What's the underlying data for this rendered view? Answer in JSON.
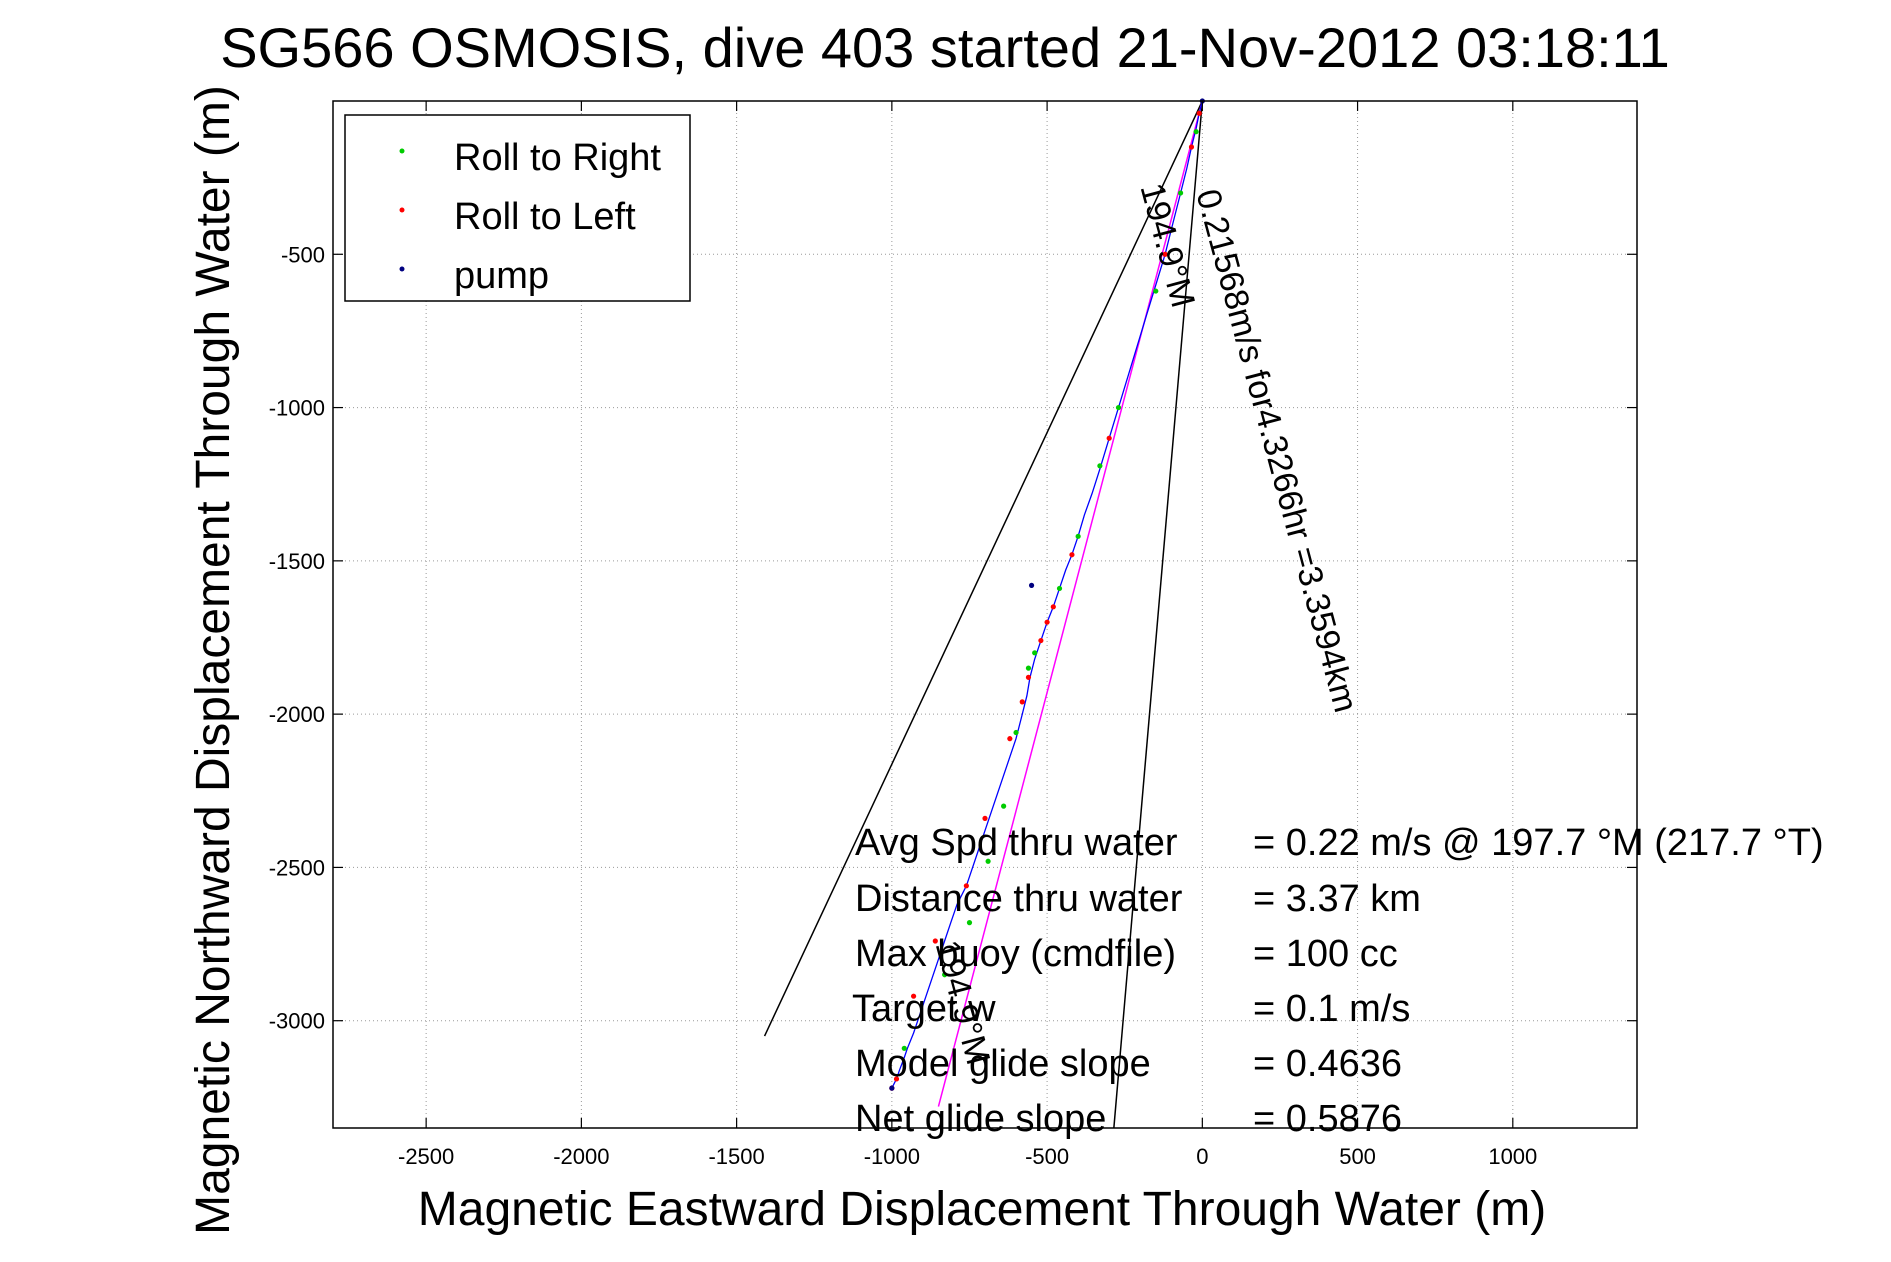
{
  "chart_data": {
    "type": "line",
    "title": "SG566 OSMOSIS, dive 403 started 21-Nov-2012 03:18:11",
    "xlabel": "Magnetic Eastward Displacement Through Water (m)",
    "ylabel": "Magnetic Northward Displacement Through Water (m)",
    "xlim": [
      -2800,
      1400
    ],
    "ylim": [
      -3350,
      0
    ],
    "xticks": [
      -2500,
      -2000,
      -1500,
      -1000,
      -500,
      0,
      500,
      1000
    ],
    "yticks": [
      -500,
      -1000,
      -1500,
      -2000,
      -2500,
      -3000
    ],
    "grid": true,
    "legend_position": "top-left",
    "legend": [
      {
        "label": "Roll to Right",
        "color": "#00cc00"
      },
      {
        "label": "Roll to Left",
        "color": "#ff0000"
      },
      {
        "label": "pump",
        "color": "#000080"
      }
    ],
    "track": {
      "color": "#0000ff",
      "x": [
        0,
        -10,
        -20,
        -35,
        -50,
        -70,
        -95,
        -120,
        -150,
        -180,
        -210,
        -240,
        -270,
        -300,
        -330,
        -355,
        -380,
        -400,
        -420,
        -440,
        -460,
        -480,
        -500,
        -520,
        -540,
        -555,
        -565,
        -580,
        -600,
        -620,
        -640,
        -660,
        -680,
        -700,
        -720,
        -740,
        -760,
        -790,
        -810,
        -830,
        -850,
        -870,
        -890,
        -910,
        -930,
        -950,
        -960,
        -975,
        -985,
        -1000
      ],
      "y": [
        0,
        -40,
        -90,
        -150,
        -220,
        -300,
        -400,
        -500,
        -600,
        -700,
        -800,
        -900,
        -1000,
        -1100,
        -1200,
        -1280,
        -1350,
        -1420,
        -1480,
        -1530,
        -1590,
        -1650,
        -1700,
        -1760,
        -1820,
        -1880,
        -1940,
        -2000,
        -2080,
        -2140,
        -2200,
        -2260,
        -2320,
        -2380,
        -2440,
        -2500,
        -2560,
        -2620,
        -2680,
        -2740,
        -2800,
        -2860,
        -2920,
        -2980,
        -3040,
        -3090,
        -3120,
        -3160,
        -3190,
        -3220
      ]
    },
    "roll_right_points": {
      "x": [
        -20,
        -70,
        -150,
        -270,
        -330,
        -400,
        -460,
        -540,
        -560,
        -600,
        -640,
        -690,
        -750,
        -830,
        -960
      ],
      "y": [
        -100,
        -300,
        -620,
        -1000,
        -1190,
        -1420,
        -1590,
        -1800,
        -1850,
        -2060,
        -2300,
        -2480,
        -2680,
        -2850,
        -3090
      ]
    },
    "roll_left_points": {
      "x": [
        -10,
        -35,
        -120,
        -300,
        -420,
        -480,
        -500,
        -520,
        -560,
        -580,
        -620,
        -700,
        -760,
        -860,
        -930,
        -985,
        -1000
      ],
      "y": [
        -40,
        -150,
        -500,
        -1100,
        -1480,
        -1650,
        -1700,
        -1760,
        -1880,
        -1960,
        -2080,
        -2340,
        -2560,
        -2740,
        -2920,
        -3190,
        -3220
      ]
    },
    "pump_points": {
      "x": [
        0,
        -550,
        -1000
      ],
      "y": [
        0,
        -1580,
        -3220
      ]
    },
    "guide_lines": [
      {
        "color": "#000000",
        "x": [
          0,
          -1410
        ],
        "y": [
          0,
          -3050
        ]
      },
      {
        "color": "#000000",
        "x": [
          0,
          -285
        ],
        "y": [
          0,
          -3350
        ]
      },
      {
        "color": "#ff00ff",
        "x": [
          0,
          -850
        ],
        "y": [
          0,
          -3280
        ]
      }
    ],
    "annotations": [
      {
        "text": "0.21568m/s for4.3266hr =3.3594km",
        "x": -20,
        "y": -300,
        "angle": 75
      },
      {
        "text": "194.9°M",
        "x": -200,
        "y": -280,
        "angle": 75
      },
      {
        "text": "194.9°M",
        "x": -860,
        "y": -2750,
        "angle": 75
      }
    ],
    "stats": [
      {
        "label": "Avg Spd thru water",
        "value": "=  0.22 m/s @ 197.7 °M (217.7 °T)"
      },
      {
        "label": "Distance thru water",
        "value": "=  3.37 km"
      },
      {
        "label": "Max buoy (cmdfile)",
        "value": "= 100 cc"
      },
      {
        "label": "Target w",
        "value": "= 0.1 m/s"
      },
      {
        "label": "Model glide slope",
        "value": "= 0.4636"
      },
      {
        "label": "Net glide slope",
        "value": "= 0.5876"
      }
    ]
  }
}
